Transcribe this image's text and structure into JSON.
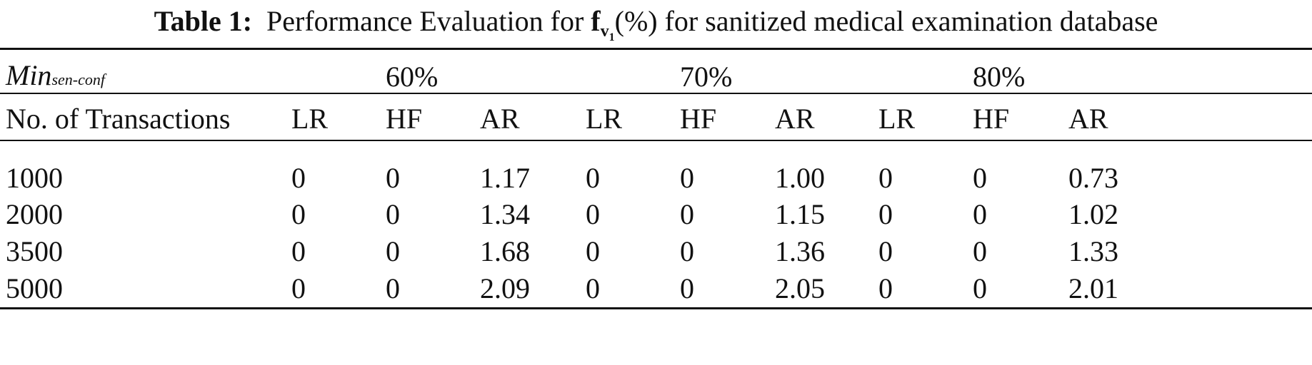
{
  "caption": {
    "label": "Table 1:",
    "text_before": "Performance Evaluation for",
    "symbol": "f",
    "symbol_sub": "v",
    "symbol_subsub": "1",
    "text_after": "(%) for sanitized medical examination database"
  },
  "table": {
    "group_header": {
      "label_main": "Min",
      "label_sub": "sen-conf",
      "groups": [
        "60%",
        "70%",
        "80%"
      ]
    },
    "columns": [
      "No. of Transactions",
      "LR",
      "HF",
      "AR",
      "LR",
      "HF",
      "AR",
      "LR",
      "HF",
      "AR"
    ],
    "rows": [
      [
        "1000",
        "0",
        "0",
        "1.17",
        "0",
        "0",
        "1.00",
        "0",
        "0",
        "0.73"
      ],
      [
        "2000",
        "0",
        "0",
        "1.34",
        "0",
        "0",
        "1.15",
        "0",
        "0",
        "1.02"
      ],
      [
        "3500",
        "0",
        "0",
        "1.68",
        "0",
        "0",
        "1.36",
        "0",
        "0",
        "1.33"
      ],
      [
        "5000",
        "0",
        "0",
        "2.09",
        "0",
        "0",
        "2.05",
        "0",
        "0",
        "2.01"
      ]
    ]
  }
}
